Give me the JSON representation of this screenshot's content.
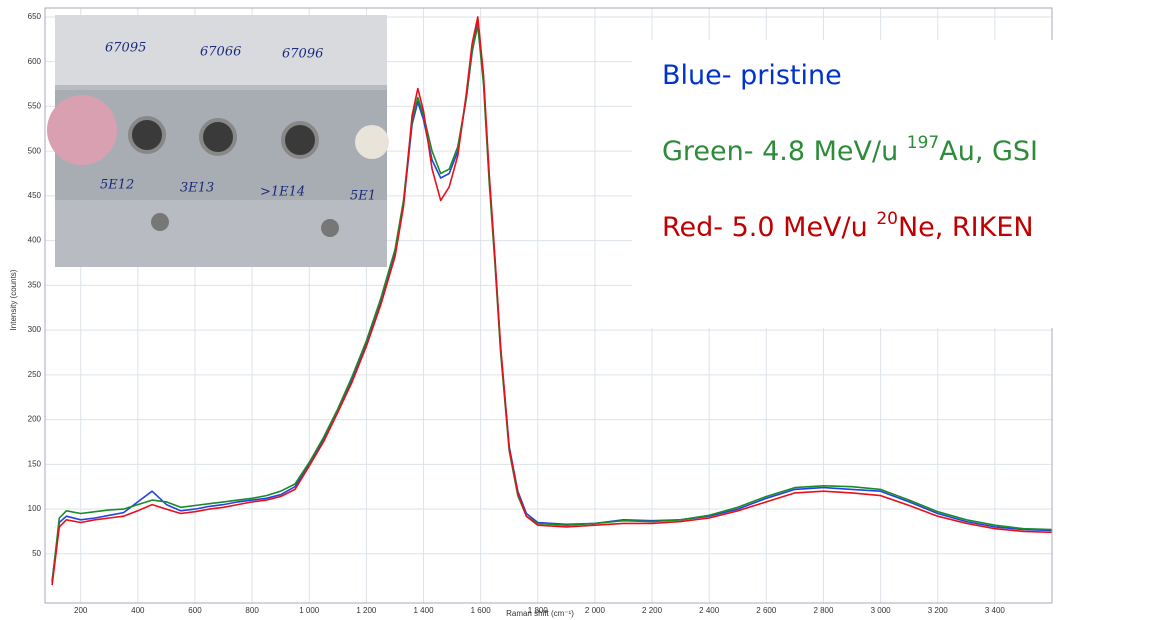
{
  "chart_data": {
    "type": "line",
    "xlabel": "Raman shift (cm⁻¹)",
    "ylabel": "Intensity (counts)",
    "xlim": [
      75,
      3600
    ],
    "ylim": [
      -5,
      660
    ],
    "xticks": [
      200,
      400,
      600,
      800,
      {
        "value": 1000,
        "label": "1 000"
      },
      {
        "value": 1200,
        "label": "1 200"
      },
      {
        "value": 1400,
        "label": "1 400"
      },
      {
        "value": 1600,
        "label": "1 600"
      },
      {
        "value": 1800,
        "label": "1 800"
      },
      {
        "value": 2000,
        "label": "2 000"
      },
      {
        "value": 2200,
        "label": "2 200"
      },
      {
        "value": 2400,
        "label": "2 400"
      },
      {
        "value": 2600,
        "label": "2 600"
      },
      {
        "value": 2800,
        "label": "2 800"
      },
      {
        "value": 3000,
        "label": "3 000"
      },
      {
        "value": 3200,
        "label": "3 200"
      },
      {
        "value": 3400,
        "label": "3 400"
      }
    ],
    "yticks": [
      50,
      100,
      150,
      200,
      250,
      300,
      350,
      400,
      450,
      500,
      550,
      600,
      650
    ],
    "grid": true,
    "x": [
      100,
      125,
      150,
      200,
      250,
      300,
      350,
      400,
      450,
      500,
      550,
      600,
      650,
      700,
      750,
      800,
      850,
      900,
      950,
      1000,
      1050,
      1100,
      1150,
      1200,
      1250,
      1300,
      1330,
      1360,
      1380,
      1400,
      1430,
      1460,
      1490,
      1520,
      1550,
      1570,
      1590,
      1610,
      1630,
      1650,
      1670,
      1700,
      1730,
      1760,
      1800,
      1900,
      2000,
      2100,
      2200,
      2300,
      2400,
      2500,
      2600,
      2700,
      2800,
      2900,
      3000,
      3100,
      3200,
      3300,
      3400,
      3500,
      3600
    ],
    "series": [
      {
        "color": "#2244e0",
        "values": [
          20,
          85,
          92,
          88,
          90,
          93,
          96,
          108,
          120,
          105,
          98,
          100,
          103,
          105,
          108,
          110,
          112,
          116,
          125,
          150,
          178,
          210,
          245,
          285,
          330,
          385,
          440,
          530,
          555,
          535,
          490,
          470,
          475,
          500,
          560,
          610,
          645,
          580,
          470,
          380,
          280,
          170,
          120,
          95,
          85,
          83,
          84,
          88,
          87,
          88,
          92,
          100,
          112,
          122,
          124,
          122,
          120,
          108,
          95,
          86,
          80,
          77,
          76
        ]
      },
      {
        "color": "#1a8a2a",
        "values": [
          18,
          90,
          98,
          95,
          97,
          99,
          100,
          105,
          110,
          108,
          102,
          104,
          106,
          108,
          110,
          112,
          115,
          120,
          128,
          152,
          180,
          212,
          248,
          288,
          335,
          390,
          445,
          535,
          560,
          540,
          500,
          475,
          480,
          505,
          560,
          612,
          640,
          575,
          465,
          375,
          275,
          165,
          115,
          92,
          84,
          82,
          84,
          87,
          86,
          88,
          93,
          102,
          114,
          124,
          126,
          125,
          122,
          110,
          97,
          88,
          82,
          78,
          77
        ]
      },
      {
        "color": "#e8101a",
        "values": [
          15,
          80,
          88,
          85,
          88,
          90,
          92,
          98,
          105,
          100,
          95,
          97,
          100,
          102,
          105,
          108,
          110,
          114,
          122,
          148,
          175,
          208,
          242,
          282,
          328,
          382,
          438,
          540,
          570,
          545,
          480,
          445,
          460,
          495,
          565,
          620,
          650,
          585,
          475,
          382,
          282,
          168,
          118,
          92,
          82,
          80,
          82,
          84,
          84,
          86,
          90,
          98,
          108,
          118,
          120,
          118,
          115,
          104,
          92,
          84,
          78,
          75,
          74
        ]
      }
    ],
    "legend": [
      {
        "color": "#0033cc",
        "parts": [
          "Blue- pristine"
        ]
      },
      {
        "color": "#2e8b3a",
        "parts": [
          "Green- 4.8 MeV/u ",
          "197",
          "Au, GSI"
        ]
      },
      {
        "color": "#c00000",
        "parts": [
          "Red- 5.0 MeV/u ",
          "20",
          "Ne, RIKEN"
        ]
      }
    ],
    "inset": {
      "labels": [
        "67095",
        "67066",
        "67096",
        "5E12",
        "3E13",
        ">1E14",
        "5E1"
      ]
    }
  }
}
